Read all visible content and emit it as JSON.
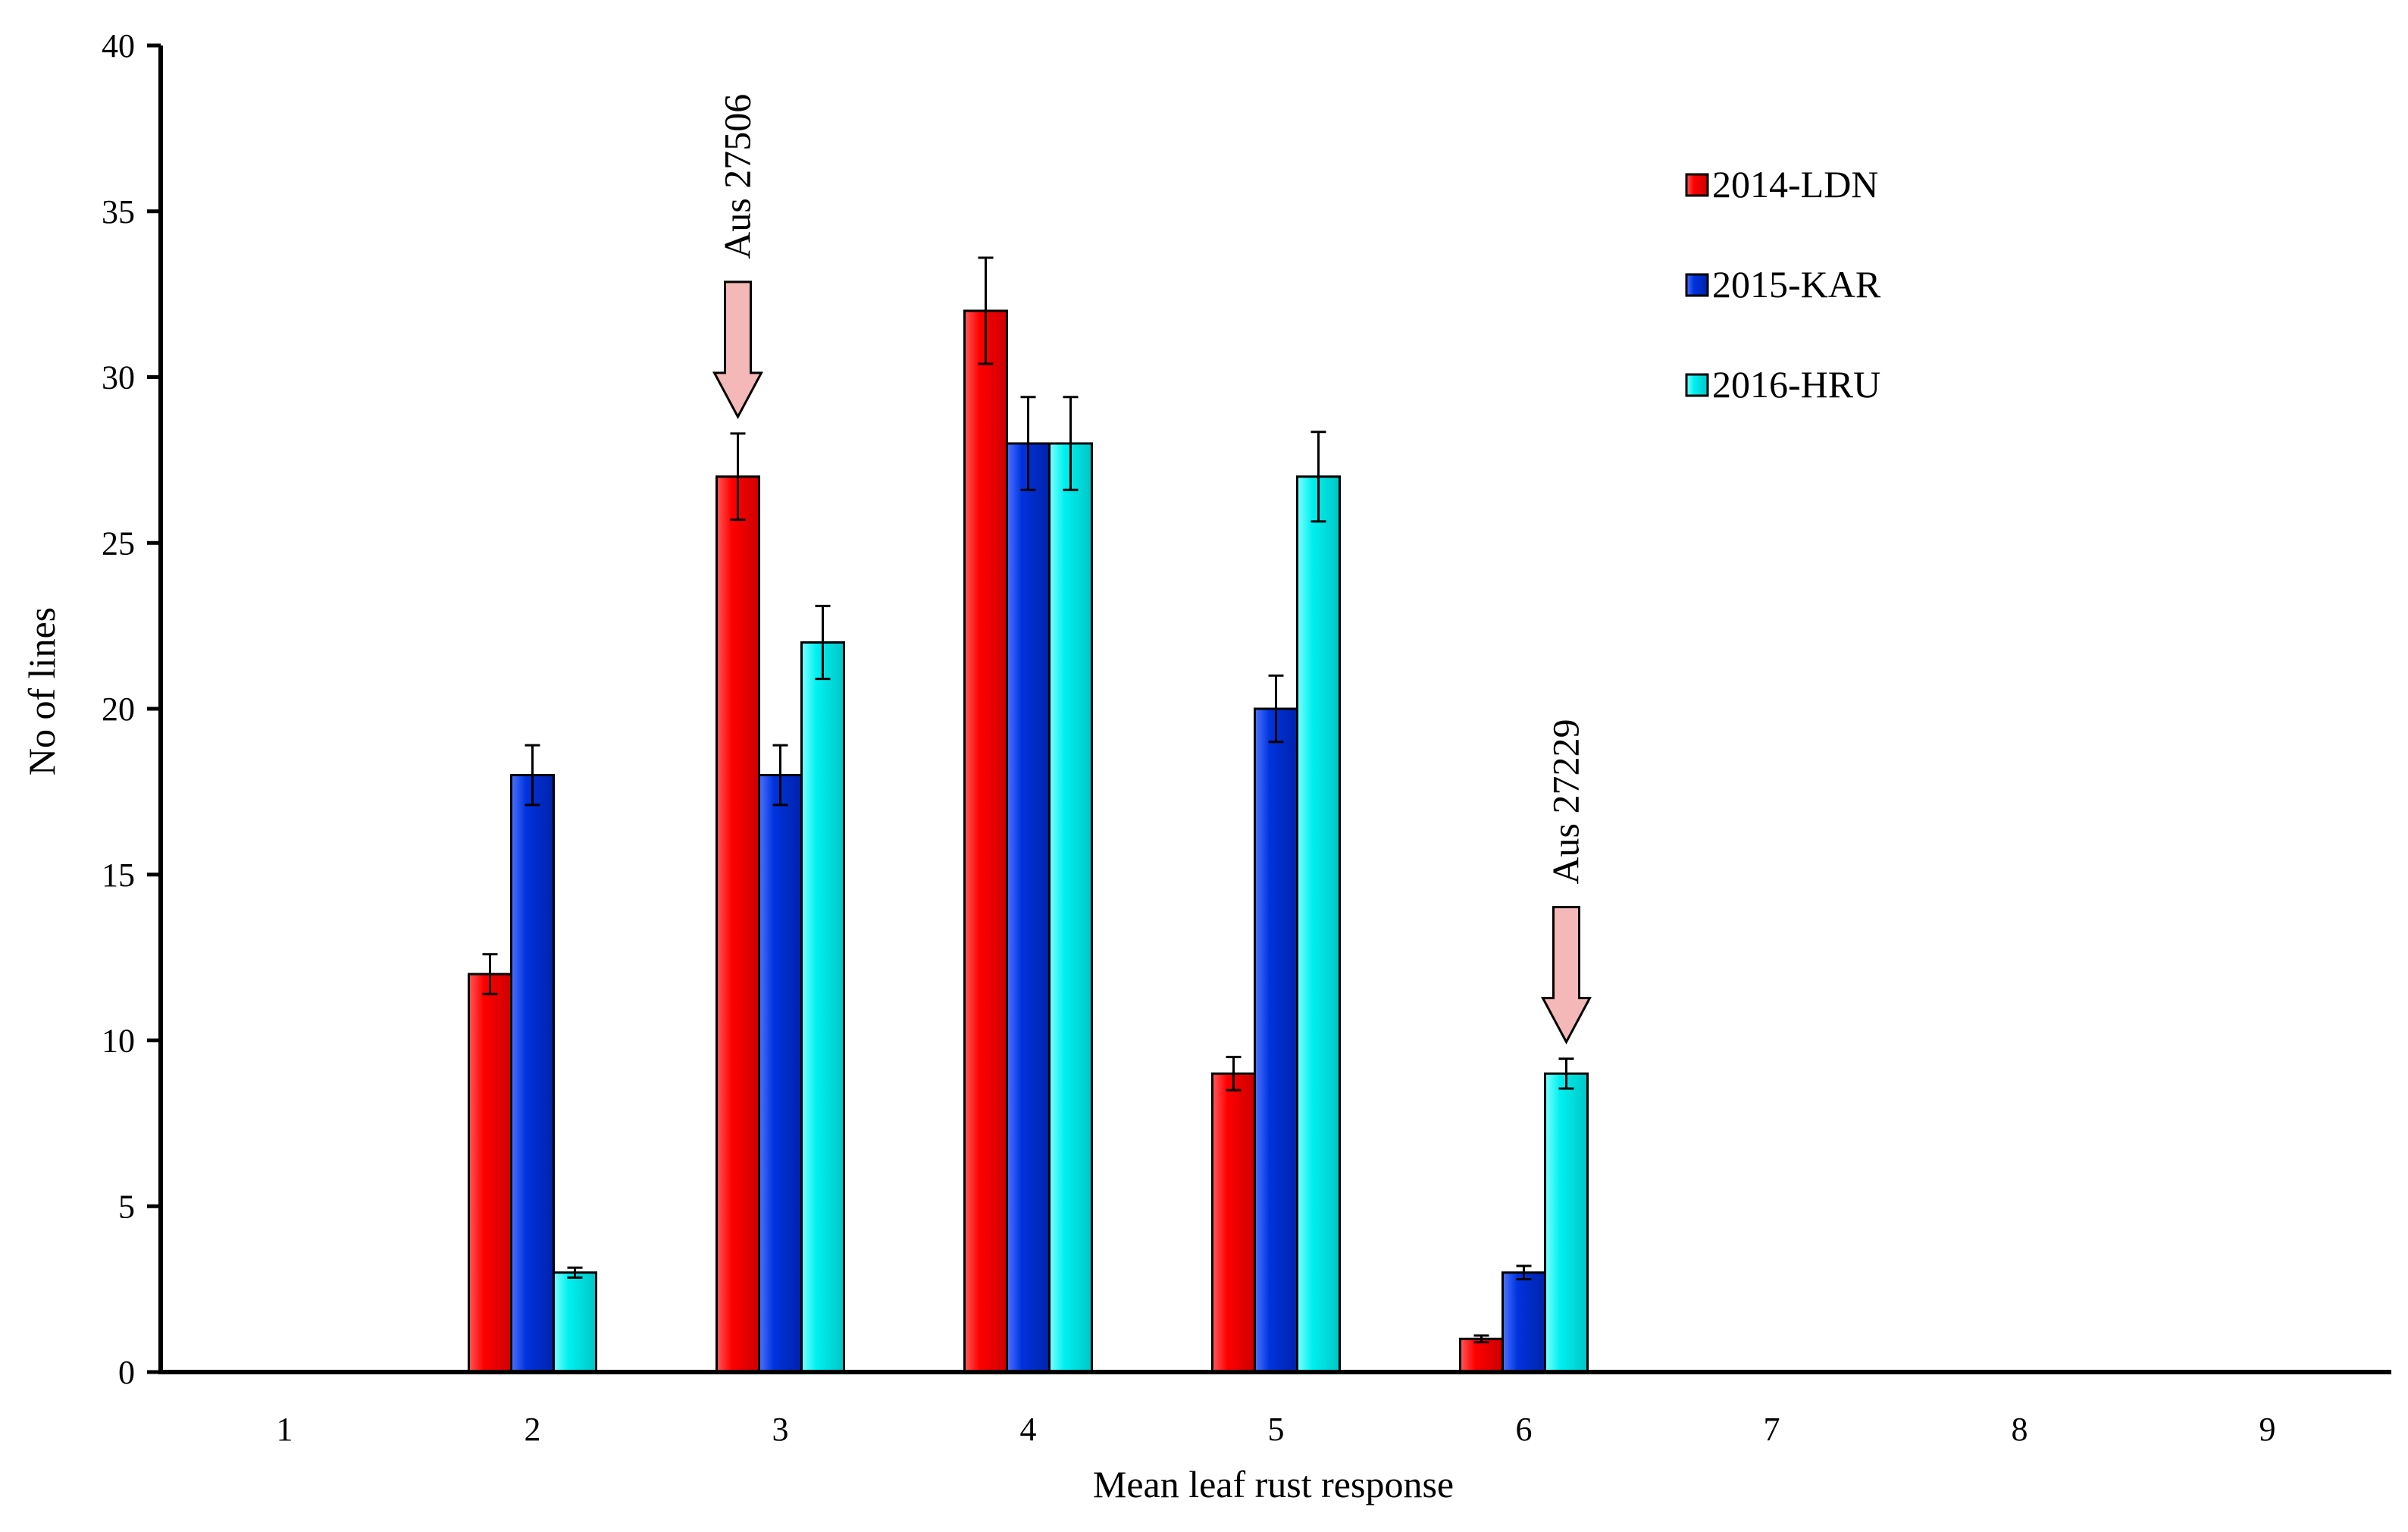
{
  "chart_data": {
    "type": "bar",
    "title": "",
    "xlabel": "Mean leaf rust response",
    "ylabel": "No of lines",
    "categories": [
      "1",
      "2",
      "3",
      "4",
      "5",
      "6",
      "7",
      "8",
      "9"
    ],
    "ylim": [
      0,
      40
    ],
    "yticks": [
      0,
      5,
      10,
      15,
      20,
      25,
      30,
      35,
      40
    ],
    "grid": false,
    "legend_position": "top-right",
    "series": [
      {
        "name": "2014-LDN",
        "color": "#ff0000",
        "values": [
          null,
          12,
          27,
          32,
          9,
          1,
          null,
          null,
          null
        ],
        "errors": [
          null,
          0.6,
          1.3,
          1.6,
          0.5,
          0.1,
          null,
          null,
          null
        ]
      },
      {
        "name": "2015-KAR",
        "color": "#0033dd",
        "values": [
          null,
          18,
          18,
          28,
          20,
          3,
          null,
          null,
          null
        ],
        "errors": [
          null,
          0.9,
          0.9,
          1.4,
          1.0,
          0.2,
          null,
          null,
          null
        ]
      },
      {
        "name": "2016-HRU",
        "color": "#00f0f0",
        "values": [
          null,
          3,
          22,
          28,
          27,
          9,
          null,
          null,
          null
        ],
        "errors": [
          null,
          0.15,
          1.1,
          1.4,
          1.35,
          0.45,
          null,
          null,
          null
        ]
      }
    ],
    "annotations": [
      {
        "text": "Aus 27506",
        "category": "3",
        "series_index": 0,
        "arrow_color": "#f4b8b8"
      },
      {
        "text": "Aus 27229",
        "category": "6",
        "series_index": 2,
        "arrow_color": "#f4b8b8"
      }
    ]
  }
}
